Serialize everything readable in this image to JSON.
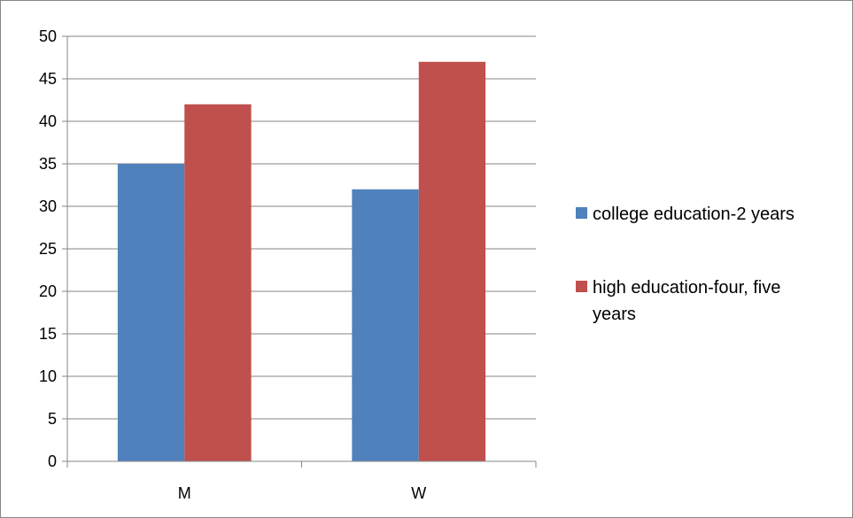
{
  "chart_data": {
    "type": "bar",
    "categories": [
      "M",
      "W"
    ],
    "series": [
      {
        "name": "college education-2 years",
        "values": [
          35,
          32
        ],
        "color": "#4F81BD"
      },
      {
        "name": "high education-four, five years",
        "values": [
          42,
          47
        ],
        "color": "#C0504D"
      }
    ],
    "ylim": [
      0,
      50
    ],
    "yticks": [
      0,
      5,
      10,
      15,
      20,
      25,
      30,
      35,
      40,
      45,
      50
    ],
    "grid": true,
    "legend_position": "right",
    "legend": {
      "item_0_lines": [
        "college education-2 years"
      ],
      "item_1_lines": [
        "high education-four, five",
        "years"
      ]
    }
  }
}
